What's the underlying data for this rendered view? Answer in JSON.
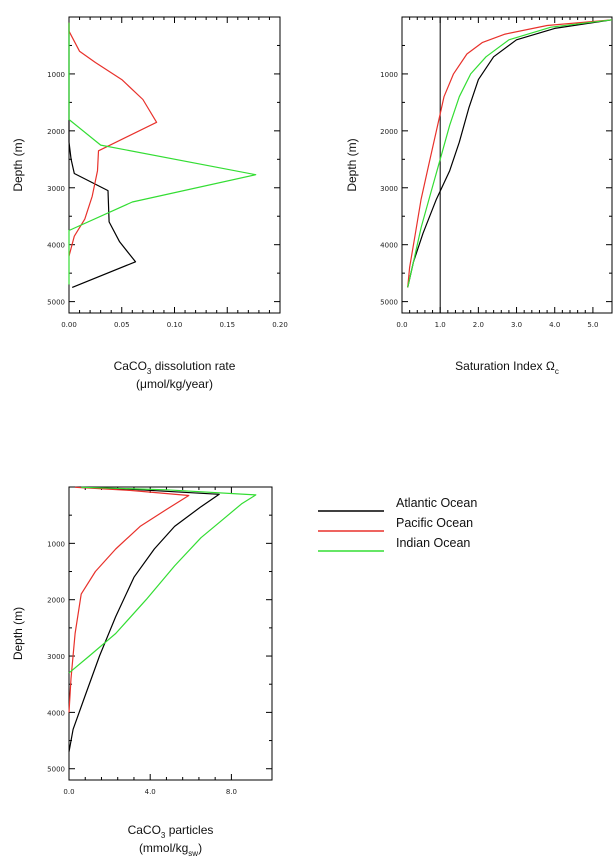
{
  "chart_data": [
    {
      "type": "line",
      "panel": "dissolution",
      "ylabel": "Depth (m)",
      "xlabel_parts": [
        "CaCO",
        "3",
        " dissolution rate"
      ],
      "xlabel_line2": "(μmol/kg/year)",
      "xlim": [
        0,
        0.2
      ],
      "ylim": [
        5200,
        0
      ],
      "x_ticks": [
        0.0,
        0.05,
        0.1,
        0.15,
        0.2
      ],
      "x_tick_labels": [
        "0.00",
        "0.05",
        "0.10",
        "0.15",
        "0.20"
      ],
      "y_ticks": [
        1000,
        2000,
        3000,
        4000,
        5000
      ],
      "y_tick_labels": [
        "1000",
        "2000",
        "3000",
        "4000",
        "5000"
      ],
      "vline": null,
      "series": [
        {
          "name": "Atlantic Ocean",
          "color": "#000000",
          "points": [
            [
              0.0,
              100
            ],
            [
              0.0,
              2200
            ],
            [
              0.002,
              2500
            ],
            [
              0.005,
              2750
            ],
            [
              0.037,
              3050
            ],
            [
              0.038,
              3600
            ],
            [
              0.048,
              3950
            ],
            [
              0.063,
              4300
            ],
            [
              0.003,
              4750
            ]
          ]
        },
        {
          "name": "Pacific Ocean",
          "color": "#e8312b",
          "points": [
            [
              0.0,
              100
            ],
            [
              0.0,
              250
            ],
            [
              0.01,
              600
            ],
            [
              0.025,
              800
            ],
            [
              0.05,
              1100
            ],
            [
              0.07,
              1450
            ],
            [
              0.083,
              1850
            ],
            [
              0.028,
              2350
            ],
            [
              0.027,
              2700
            ],
            [
              0.022,
              3150
            ],
            [
              0.015,
              3550
            ],
            [
              0.005,
              3850
            ],
            [
              0.0,
              4200
            ]
          ]
        },
        {
          "name": "Indian Ocean",
          "color": "#33dd33",
          "points": [
            [
              0.0,
              100
            ],
            [
              0.0,
              1800
            ],
            [
              0.03,
              2250
            ],
            [
              0.177,
              2770
            ],
            [
              0.06,
              3250
            ],
            [
              0.0,
              3750
            ],
            [
              0.0,
              4700
            ]
          ]
        }
      ]
    },
    {
      "type": "line",
      "panel": "saturation",
      "ylabel": "Depth (m)",
      "xlabel_parts": [
        "Saturation Index Ω",
        "c",
        ""
      ],
      "xlabel_line2": "",
      "xlim": [
        0,
        5.5
      ],
      "ylim": [
        5200,
        0
      ],
      "x_ticks": [
        0,
        1,
        2,
        3,
        4,
        5
      ],
      "x_tick_labels": [
        "0.0",
        "1.0",
        "2.0",
        "3.0",
        "4.0",
        "5.0"
      ],
      "y_ticks": [
        1000,
        2000,
        3000,
        4000,
        5000
      ],
      "y_tick_labels": [
        "1000",
        "2000",
        "3000",
        "4000",
        "5000"
      ],
      "vline": 1.0,
      "series": [
        {
          "name": "Atlantic Ocean",
          "color": "#000000",
          "points": [
            [
              5.5,
              50
            ],
            [
              4.0,
              200
            ],
            [
              3.0,
              400
            ],
            [
              2.4,
              700
            ],
            [
              2.0,
              1100
            ],
            [
              1.75,
              1600
            ],
            [
              1.5,
              2200
            ],
            [
              1.25,
              2700
            ],
            [
              0.9,
              3200
            ],
            [
              0.55,
              3800
            ],
            [
              0.3,
              4300
            ],
            [
              0.15,
              4750
            ]
          ]
        },
        {
          "name": "Pacific Ocean",
          "color": "#e8312b",
          "points": [
            [
              5.5,
              50
            ],
            [
              3.8,
              150
            ],
            [
              2.7,
              300
            ],
            [
              2.1,
              450
            ],
            [
              1.7,
              650
            ],
            [
              1.35,
              1000
            ],
            [
              1.1,
              1400
            ],
            [
              0.9,
              2000
            ],
            [
              0.7,
              2600
            ],
            [
              0.5,
              3200
            ],
            [
              0.35,
              3800
            ],
            [
              0.2,
              4400
            ],
            [
              0.15,
              4750
            ]
          ]
        },
        {
          "name": "Indian Ocean",
          "color": "#33dd33",
          "points": [
            [
              5.5,
              50
            ],
            [
              3.9,
              180
            ],
            [
              2.8,
              400
            ],
            [
              2.2,
              700
            ],
            [
              1.8,
              1000
            ],
            [
              1.5,
              1400
            ],
            [
              1.25,
              1900
            ],
            [
              1.0,
              2500
            ],
            [
              0.75,
              3100
            ],
            [
              0.5,
              3700
            ],
            [
              0.3,
              4300
            ],
            [
              0.15,
              4750
            ]
          ]
        }
      ]
    },
    {
      "type": "line",
      "panel": "particles",
      "ylabel": "Depth (m)",
      "xlabel_parts": [
        "CaCO",
        "3",
        " particles"
      ],
      "xlabel_line2": "(mmol/kg",
      "xlabel_line2_sub": "sw",
      "xlabel_line2_end": ")",
      "xlim": [
        0,
        10
      ],
      "ylim": [
        5200,
        0
      ],
      "x_ticks": [
        0,
        4,
        8
      ],
      "x_tick_labels": [
        "0.0",
        "4.0",
        "8.0"
      ],
      "y_ticks": [
        1000,
        2000,
        3000,
        4000,
        5000
      ],
      "y_tick_labels": [
        "1000",
        "2000",
        "3000",
        "4000",
        "5000"
      ],
      "vline": null,
      "series": [
        {
          "name": "Atlantic Ocean",
          "color": "#000000",
          "points": [
            [
              0.4,
              5
            ],
            [
              3.5,
              50
            ],
            [
              7.4,
              130
            ],
            [
              6.5,
              350
            ],
            [
              5.2,
              700
            ],
            [
              4.2,
              1100
            ],
            [
              3.2,
              1600
            ],
            [
              2.3,
              2300
            ],
            [
              1.5,
              3000
            ],
            [
              0.8,
              3700
            ],
            [
              0.2,
              4300
            ],
            [
              0.0,
              4700
            ]
          ]
        },
        {
          "name": "Pacific Ocean",
          "color": "#e8312b",
          "points": [
            [
              0.3,
              5
            ],
            [
              3.0,
              60
            ],
            [
              5.9,
              150
            ],
            [
              4.8,
              400
            ],
            [
              3.5,
              700
            ],
            [
              2.3,
              1100
            ],
            [
              1.3,
              1500
            ],
            [
              0.6,
              1900
            ],
            [
              0.3,
              2600
            ],
            [
              0.1,
              3400
            ],
            [
              0.0,
              4000
            ]
          ]
        },
        {
          "name": "Indian Ocean",
          "color": "#33dd33",
          "points": [
            [
              0.6,
              5
            ],
            [
              4.8,
              50
            ],
            [
              9.2,
              140
            ],
            [
              8.5,
              300
            ],
            [
              7.5,
              600
            ],
            [
              6.5,
              900
            ],
            [
              5.2,
              1400
            ],
            [
              3.8,
              2000
            ],
            [
              2.3,
              2600
            ],
            [
              1.0,
              3000
            ],
            [
              0.0,
              3300
            ]
          ]
        }
      ]
    }
  ],
  "legend": {
    "placement": "right of bottom-left panel",
    "items": [
      {
        "label": "Atlantic Ocean",
        "color": "#000000"
      },
      {
        "label": "Pacific Ocean",
        "color": "#e8312b"
      },
      {
        "label": "Indian Ocean",
        "color": "#33dd33"
      }
    ]
  }
}
